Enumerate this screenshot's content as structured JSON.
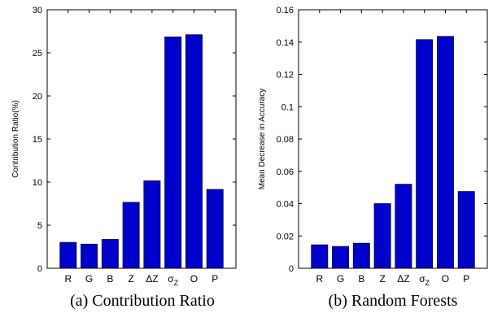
{
  "colors": {
    "bar_fill": "#0000cc",
    "bar_stroke": "#000033",
    "axis": "#000000"
  },
  "chart_data": [
    {
      "type": "bar",
      "categories": [
        "R",
        "G",
        "B",
        "Z",
        "ΔZ",
        "σZ",
        "O",
        "P"
      ],
      "values": [
        3.0,
        2.8,
        3.35,
        7.65,
        10.15,
        26.85,
        27.1,
        9.15
      ],
      "title": "",
      "caption": "(a) Contribution Ratio",
      "xlabel": "",
      "ylabel": "Contribution Ratio(%)",
      "ylim": [
        0,
        30
      ],
      "yticks": [
        0,
        5,
        10,
        15,
        20,
        25,
        30
      ],
      "ytick_labels": [
        "0",
        "5",
        "10",
        "15",
        "20",
        "25",
        "30"
      ],
      "grid": false,
      "legend": "none"
    },
    {
      "type": "bar",
      "categories": [
        "R",
        "G",
        "B",
        "Z",
        "ΔZ",
        "σZ",
        "O",
        "P"
      ],
      "values": [
        0.0145,
        0.0135,
        0.0155,
        0.04,
        0.052,
        0.1415,
        0.1435,
        0.0475
      ],
      "title": "",
      "caption": "(b) Random Forests",
      "xlabel": "",
      "ylabel": "Mean Decrease in Accuracy",
      "ylim": [
        0,
        0.16
      ],
      "yticks": [
        0,
        0.02,
        0.04,
        0.06,
        0.08,
        0.1,
        0.12,
        0.14,
        0.16
      ],
      "ytick_labels": [
        "0",
        "0.02",
        "0.04",
        "0.06",
        "0.08",
        "0.1",
        "0.12",
        "0.14",
        "0.16"
      ],
      "grid": false,
      "legend": "none"
    }
  ]
}
